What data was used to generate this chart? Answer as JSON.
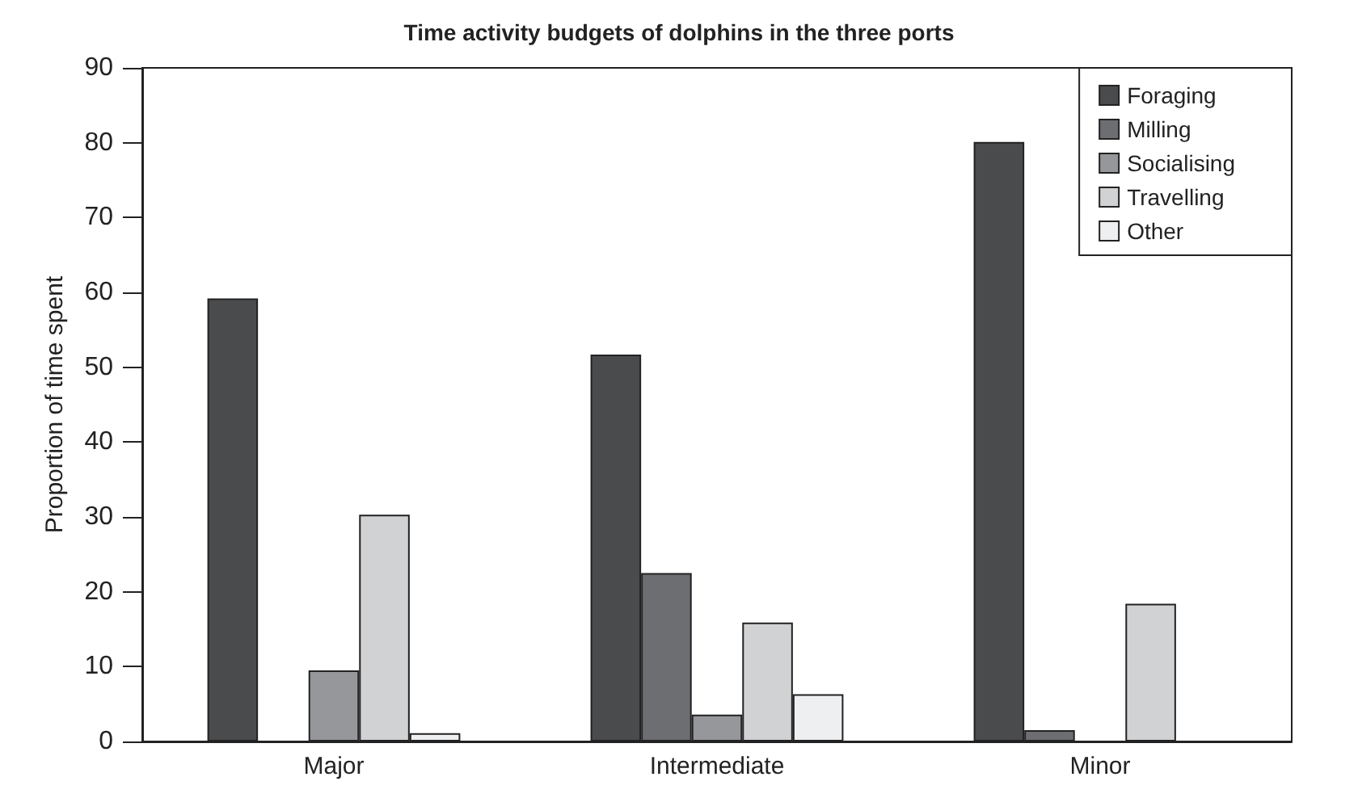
{
  "chart_data": {
    "type": "bar",
    "title": "Time activity budgets of dolphins in the three ports",
    "ylabel": "Proportion of time spent",
    "categories": [
      "Major",
      "Intermediate",
      "Minor"
    ],
    "series": [
      {
        "name": "Foraging",
        "color": "#4a4b4d",
        "values": [
          59.2,
          51.7,
          80.1
        ]
      },
      {
        "name": "Milling",
        "color": "#6d6e72",
        "values": [
          null,
          22.5,
          1.5
        ]
      },
      {
        "name": "Socialising",
        "color": "#96979a",
        "values": [
          9.5,
          3.6,
          null
        ]
      },
      {
        "name": "Travelling",
        "color": "#d1d2d4",
        "values": [
          30.3,
          15.9,
          18.4
        ]
      },
      {
        "name": "Other",
        "color": "#eeeff0",
        "values": [
          1.1,
          6.3,
          null
        ]
      }
    ],
    "ylim": [
      0,
      90
    ],
    "yticks": [
      0,
      10,
      20,
      30,
      40,
      50,
      60,
      70,
      80,
      90
    ],
    "grid": false,
    "legend": "top right"
  }
}
